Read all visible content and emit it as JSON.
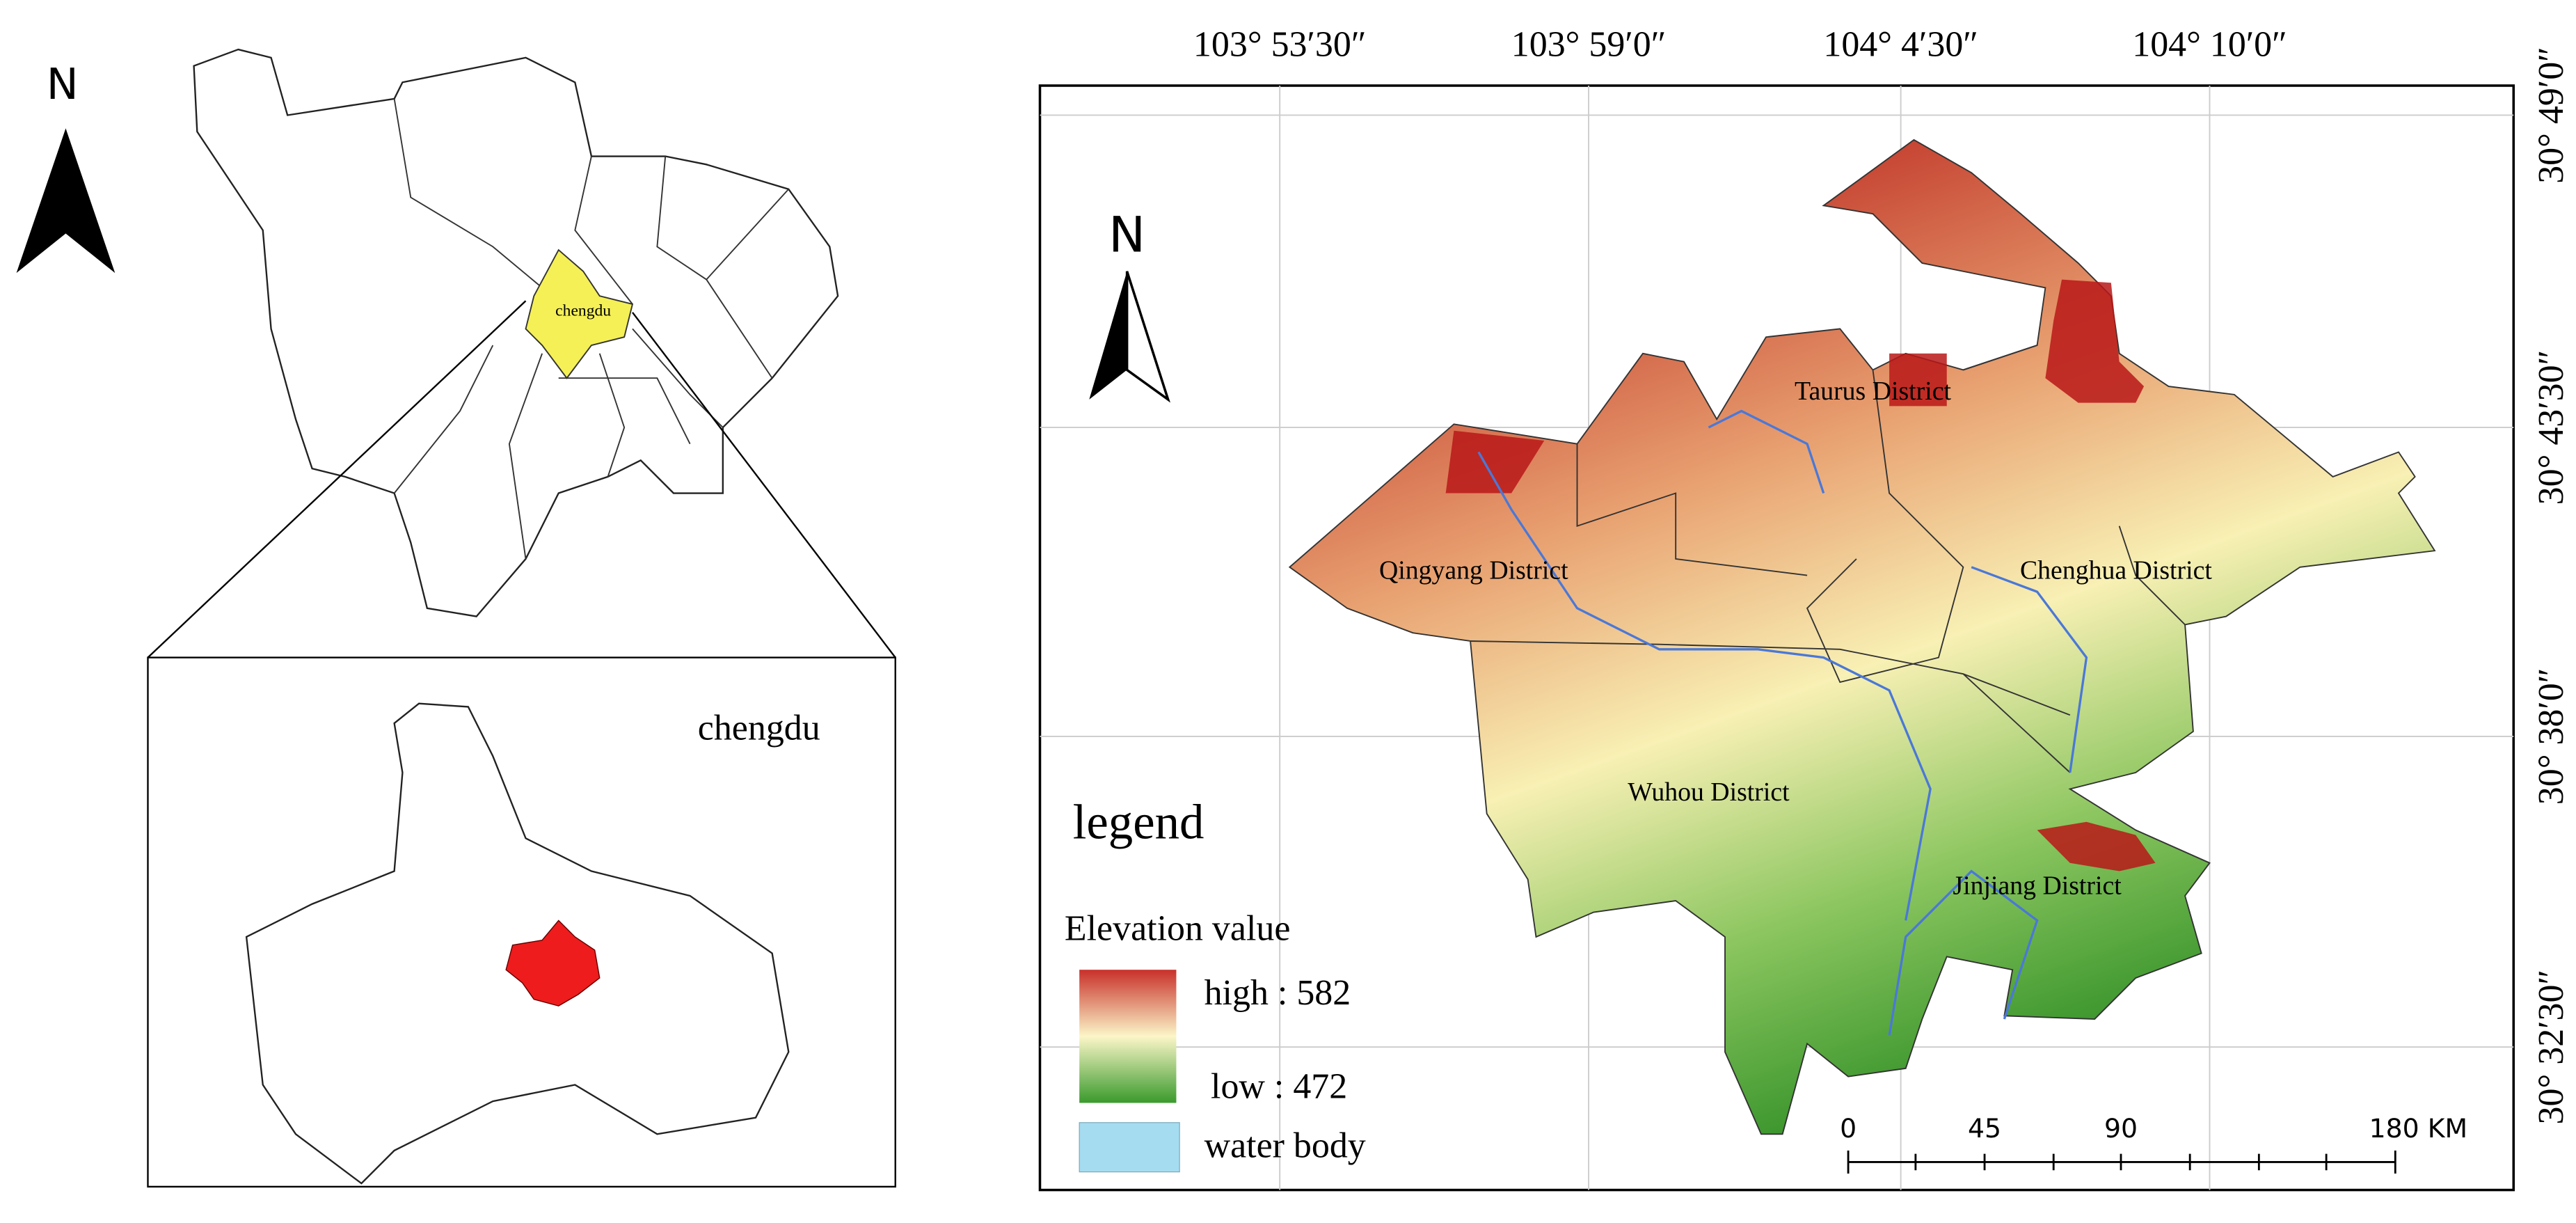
{
  "locator": {
    "north": "N",
    "province_label": "chengdu",
    "inset_label": "chengdu"
  },
  "map": {
    "north": "N",
    "top_labels": [
      "103° 53′30″",
      "103° 59′0″",
      "104° 4′30″",
      "104° 10′0″"
    ],
    "right_labels": [
      "30° 49′0″",
      "30° 43′30″",
      "30° 38′0″",
      "30° 32′30″"
    ],
    "districts": [
      "Taurus District",
      "Qingyang District",
      "Chenghua District",
      "Wuhou District",
      "Jinjiang District"
    ],
    "legend": {
      "title": "legend",
      "subtitle": "Elevation value",
      "high": "high : 582",
      "low": "low : 472",
      "water": "water body"
    },
    "scale_bar": [
      "0",
      "45",
      "90",
      "180 KM"
    ]
  }
}
